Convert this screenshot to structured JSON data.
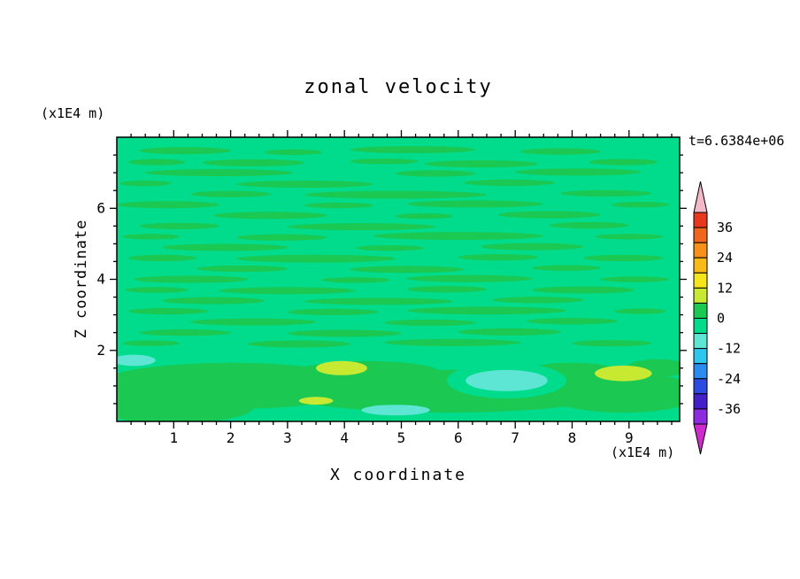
{
  "page": {
    "background": "#ffffff"
  },
  "chart_data": {
    "type": "heatmap",
    "title": "zonal velocity",
    "time_label": "t=6.6384e+06",
    "xlabel": "X coordinate",
    "ylabel": "Z coordinate",
    "x_unit": "(x1E4 m)",
    "y_unit": "(x1E4 m)",
    "xlim": [
      0,
      9.89
    ],
    "ylim": [
      0,
      8
    ],
    "x_ticks": [
      1,
      2,
      3,
      4,
      5,
      6,
      7,
      8,
      9
    ],
    "y_ticks": [
      2,
      4,
      6
    ],
    "grid": false,
    "legend_position": "right-colorbar-with-arrow-ends",
    "levels": [
      42,
      36,
      30,
      24,
      18,
      12,
      6,
      0,
      -6,
      -12,
      -18,
      -24,
      -30,
      -36,
      -42
    ],
    "colorbar_labels": [
      36,
      24,
      12,
      0,
      -12,
      -24,
      -36
    ],
    "colorbar_colors": [
      "#e8391f",
      "#f0661c",
      "#f79019",
      "#fbbb17",
      "#f5e51a",
      "#c8e932",
      "#1ac852",
      "#00dc8c",
      "#5de6d4",
      "#2fc6ee",
      "#2b8cf0",
      "#2c4be0",
      "#4420c8",
      "#8c2be0"
    ],
    "arrow_top": "#f2b9c8",
    "arrow_bottom": "#cb2ccb",
    "palette": {
      "bg": "#00dc8c",
      "g": "#1ac852",
      "c": "#5de6d4",
      "y": "#c8e932"
    },
    "field_description": "Zonal velocity field, values mostly between -6 and +6: spring-green background (-6..0) with horizontal green streaks (0..6); near the bottom boundary a broad green band with cyan patches (about -12..-6) and small yellow-green patches (about +6..+12).",
    "shapes": [
      [
        1.2,
        7.62,
        0.8,
        0.1,
        "g"
      ],
      [
        3.1,
        7.58,
        0.5,
        0.08,
        "g"
      ],
      [
        5.2,
        7.65,
        1.1,
        0.1,
        "g"
      ],
      [
        7.8,
        7.6,
        0.7,
        0.09,
        "g"
      ],
      [
        0.7,
        7.3,
        0.5,
        0.09,
        "g"
      ],
      [
        2.4,
        7.28,
        0.9,
        0.1,
        "g"
      ],
      [
        4.7,
        7.32,
        0.6,
        0.08,
        "g"
      ],
      [
        6.4,
        7.25,
        1.0,
        0.1,
        "g"
      ],
      [
        8.9,
        7.3,
        0.6,
        0.09,
        "g"
      ],
      [
        1.8,
        7.0,
        1.3,
        0.1,
        "g"
      ],
      [
        5.6,
        6.98,
        0.7,
        0.09,
        "g"
      ],
      [
        8.1,
        7.02,
        1.1,
        0.1,
        "g"
      ],
      [
        0.5,
        6.7,
        0.45,
        0.08,
        "g"
      ],
      [
        3.3,
        6.68,
        1.2,
        0.1,
        "g"
      ],
      [
        6.9,
        6.72,
        0.8,
        0.09,
        "g"
      ],
      [
        2.0,
        6.4,
        0.7,
        0.09,
        "g"
      ],
      [
        4.9,
        6.38,
        1.6,
        0.11,
        "g"
      ],
      [
        8.6,
        6.42,
        0.8,
        0.09,
        "g"
      ],
      [
        0.9,
        6.1,
        0.9,
        0.1,
        "g"
      ],
      [
        3.9,
        6.08,
        0.6,
        0.08,
        "g"
      ],
      [
        6.3,
        6.12,
        1.2,
        0.1,
        "g"
      ],
      [
        9.2,
        6.1,
        0.5,
        0.08,
        "g"
      ],
      [
        2.7,
        5.8,
        1.0,
        0.1,
        "g"
      ],
      [
        5.4,
        5.78,
        0.5,
        0.08,
        "g"
      ],
      [
        7.6,
        5.82,
        0.9,
        0.1,
        "g"
      ],
      [
        1.1,
        5.5,
        0.7,
        0.09,
        "g"
      ],
      [
        4.3,
        5.48,
        1.3,
        0.1,
        "g"
      ],
      [
        8.3,
        5.52,
        0.7,
        0.09,
        "g"
      ],
      [
        0.6,
        5.2,
        0.5,
        0.08,
        "g"
      ],
      [
        2.9,
        5.18,
        0.8,
        0.09,
        "g"
      ],
      [
        6.0,
        5.22,
        1.5,
        0.11,
        "g"
      ],
      [
        9.0,
        5.2,
        0.6,
        0.08,
        "g"
      ],
      [
        1.9,
        4.9,
        1.1,
        0.1,
        "g"
      ],
      [
        4.8,
        4.88,
        0.6,
        0.08,
        "g"
      ],
      [
        7.3,
        4.92,
        0.9,
        0.1,
        "g"
      ],
      [
        0.8,
        4.6,
        0.6,
        0.09,
        "g"
      ],
      [
        3.5,
        4.58,
        1.4,
        0.11,
        "g"
      ],
      [
        6.7,
        4.62,
        0.7,
        0.09,
        "g"
      ],
      [
        8.9,
        4.6,
        0.7,
        0.09,
        "g"
      ],
      [
        2.2,
        4.3,
        0.8,
        0.09,
        "g"
      ],
      [
        5.1,
        4.28,
        1.0,
        0.1,
        "g"
      ],
      [
        7.9,
        4.32,
        0.6,
        0.08,
        "g"
      ],
      [
        1.3,
        4.0,
        1.0,
        0.1,
        "g"
      ],
      [
        4.2,
        3.98,
        0.6,
        0.08,
        "g"
      ],
      [
        6.2,
        4.02,
        1.1,
        0.1,
        "g"
      ],
      [
        9.1,
        4.0,
        0.6,
        0.08,
        "g"
      ],
      [
        0.7,
        3.7,
        0.55,
        0.08,
        "g"
      ],
      [
        3.0,
        3.68,
        1.2,
        0.1,
        "g"
      ],
      [
        5.8,
        3.72,
        0.7,
        0.09,
        "g"
      ],
      [
        8.2,
        3.7,
        0.9,
        0.1,
        "g"
      ],
      [
        1.7,
        3.4,
        0.9,
        0.1,
        "g"
      ],
      [
        4.6,
        3.38,
        1.3,
        0.1,
        "g"
      ],
      [
        7.4,
        3.42,
        0.8,
        0.09,
        "g"
      ],
      [
        0.9,
        3.1,
        0.7,
        0.09,
        "g"
      ],
      [
        3.8,
        3.08,
        0.8,
        0.09,
        "g"
      ],
      [
        6.5,
        3.12,
        1.4,
        0.11,
        "g"
      ],
      [
        9.2,
        3.1,
        0.45,
        0.08,
        "g"
      ],
      [
        2.4,
        2.8,
        1.1,
        0.1,
        "g"
      ],
      [
        5.5,
        2.78,
        0.8,
        0.09,
        "g"
      ],
      [
        8.0,
        2.82,
        0.8,
        0.09,
        "g"
      ],
      [
        1.2,
        2.5,
        0.8,
        0.09,
        "g"
      ],
      [
        4.0,
        2.48,
        1.0,
        0.1,
        "g"
      ],
      [
        6.9,
        2.52,
        0.9,
        0.1,
        "g"
      ],
      [
        0.6,
        2.2,
        0.5,
        0.08,
        "g"
      ],
      [
        3.2,
        2.18,
        0.9,
        0.1,
        "g"
      ],
      [
        5.9,
        2.22,
        1.2,
        0.1,
        "g"
      ],
      [
        8.7,
        2.2,
        0.7,
        0.09,
        "g"
      ],
      [
        2.0,
        1.0,
        2.4,
        0.65,
        "g"
      ],
      [
        5.8,
        0.85,
        3.0,
        0.6,
        "g"
      ],
      [
        8.9,
        0.8,
        1.4,
        0.55,
        "g"
      ],
      [
        4.4,
        1.35,
        1.3,
        0.35,
        "g"
      ],
      [
        1.0,
        0.4,
        1.4,
        0.45,
        "g"
      ],
      [
        8.0,
        1.35,
        0.9,
        0.3,
        "g"
      ],
      [
        9.5,
        1.5,
        0.55,
        0.25,
        "g"
      ],
      [
        6.85,
        1.15,
        1.05,
        0.5,
        "bg"
      ],
      [
        6.85,
        1.15,
        0.72,
        0.3,
        "c"
      ],
      [
        0.3,
        1.72,
        0.38,
        0.16,
        "c"
      ],
      [
        4.9,
        0.32,
        0.6,
        0.15,
        "c"
      ],
      [
        3.95,
        1.5,
        0.45,
        0.2,
        "y"
      ],
      [
        8.9,
        1.35,
        0.5,
        0.22,
        "y"
      ],
      [
        3.5,
        0.58,
        0.3,
        0.11,
        "y"
      ]
    ]
  }
}
